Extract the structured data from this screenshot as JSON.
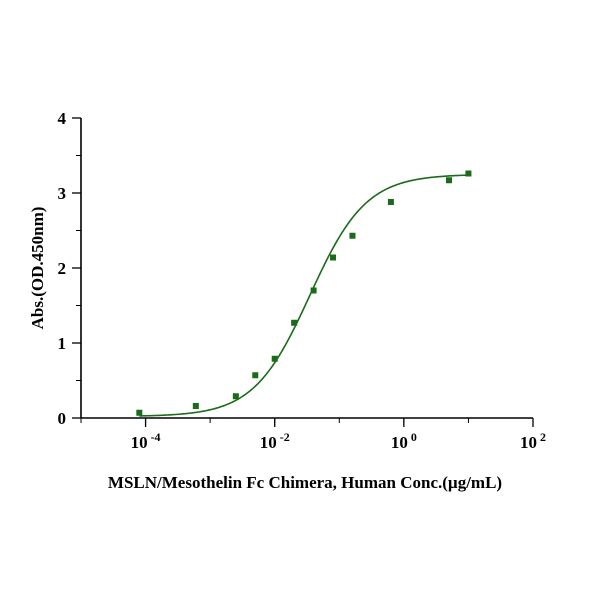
{
  "chart_data": {
    "type": "scatter",
    "title": "",
    "xlabel": "MSLN/Mesothelin Fc Chimera, Human Conc.(µg/mL)",
    "ylabel": "Abs.(OD.450nm)",
    "x_scale": "log",
    "xlim": [
      1e-05,
      100
    ],
    "ylim": [
      0,
      4
    ],
    "x_ticks": [
      {
        "value": 0.0001,
        "base": "10",
        "exp": "-4"
      },
      {
        "value": 0.01,
        "base": "10",
        "exp": "-2"
      },
      {
        "value": 1,
        "base": "10",
        "exp": "0"
      },
      {
        "value": 100,
        "base": "10",
        "exp": "2"
      }
    ],
    "y_ticks": [
      {
        "value": 0,
        "label": "0"
      },
      {
        "value": 1,
        "label": "1"
      },
      {
        "value": 2,
        "label": "2"
      },
      {
        "value": 3,
        "label": "3"
      },
      {
        "value": 4,
        "label": "4"
      }
    ],
    "grid": false,
    "series": [
      {
        "color": "#1a6b1a",
        "marker": "square",
        "points": [
          {
            "x": 8e-05,
            "y": 0.07
          },
          {
            "x": 0.0006,
            "y": 0.16
          },
          {
            "x": 0.0025,
            "y": 0.29
          },
          {
            "x": 0.005,
            "y": 0.57
          },
          {
            "x": 0.01,
            "y": 0.79
          },
          {
            "x": 0.02,
            "y": 1.27
          },
          {
            "x": 0.04,
            "y": 1.7
          },
          {
            "x": 0.08,
            "y": 2.14
          },
          {
            "x": 0.16,
            "y": 2.43
          },
          {
            "x": 0.63,
            "y": 2.88
          },
          {
            "x": 5,
            "y": 3.17
          },
          {
            "x": 10,
            "y": 3.26
          }
        ]
      }
    ],
    "fit": {
      "model": "4PL",
      "bottom": 0.02,
      "top": 3.25,
      "ec50": 0.035,
      "hill": 1.0,
      "x_from": 8e-05,
      "x_to": 10
    }
  }
}
